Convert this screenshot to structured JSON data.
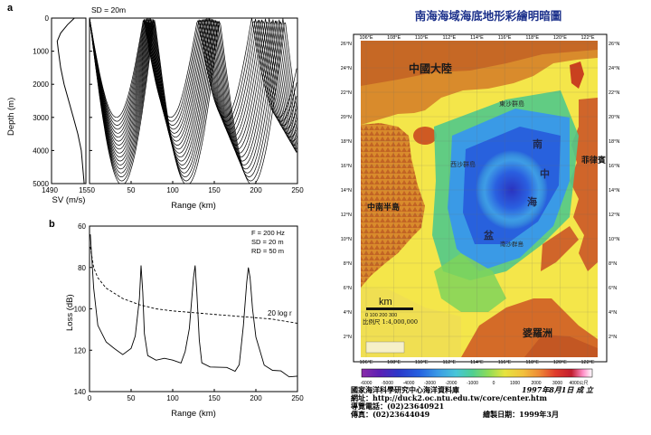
{
  "panel_a": {
    "label": "a",
    "sd_note": "SD = 20m",
    "sv_xlabel": "SV (m/s)",
    "range_xlabel": "Range (km)",
    "ylabel": "Depth (m)",
    "y_ticks": [
      "0",
      "1000",
      "2000",
      "3000",
      "4000",
      "5000"
    ],
    "sv_ticks": [
      "1490",
      "1550"
    ],
    "range_ticks": [
      "50",
      "100",
      "150",
      "200",
      "250"
    ]
  },
  "panel_b": {
    "label": "b",
    "params": [
      "F  =  200  Hz",
      "SD  =    20   m",
      "RD  =    50   m"
    ],
    "curve_label": "20 log r",
    "ylabel": "Loss (dB)",
    "xlabel": "Range (km)"
  },
  "chart_data": [
    {
      "type": "line",
      "title": "",
      "xlabel": "SV (m/s)",
      "ylabel": "Depth (m)",
      "xlim": [
        1490,
        1550
      ],
      "ylim": [
        5000,
        0
      ],
      "series": [
        {
          "x": [
            1530,
            1518,
            1506,
            1500,
            1502,
            1506,
            1512,
            1520,
            1528,
            1536,
            1542,
            1547
          ],
          "y": [
            0,
            200,
            450,
            700,
            1000,
            1500,
            2000,
            2500,
            3000,
            3500,
            4000,
            5000
          ]
        }
      ]
    },
    {
      "type": "line",
      "title": "",
      "xlabel": "Range (km)",
      "ylabel": "Depth (m)",
      "xlim": [
        0,
        250
      ],
      "ylim": [
        5000,
        0
      ],
      "x_ticks": [
        0,
        50,
        100,
        150,
        200,
        250
      ],
      "y_ticks": [
        0,
        1000,
        2000,
        3000,
        4000,
        5000
      ],
      "convergence_zones_km": [
        62,
        128,
        193
      ]
    },
    {
      "type": "line",
      "title": "",
      "xlabel": "Range (km)",
      "ylabel": "Loss (dB)",
      "xlim": [
        0,
        250
      ],
      "ylim": [
        140,
        60
      ],
      "x_ticks": [
        0,
        50,
        100,
        150,
        200,
        250
      ],
      "y_ticks": [
        60,
        80,
        100,
        120,
        140
      ],
      "series": [
        {
          "x": [
            1,
            5,
            10,
            20,
            30,
            40,
            50,
            55,
            60,
            62,
            64,
            66,
            70,
            80,
            90,
            100,
            110,
            115,
            120,
            125,
            127,
            129,
            132,
            135,
            145,
            155,
            165,
            175,
            180,
            185,
            189,
            191,
            193,
            196,
            200,
            210,
            220,
            230,
            240,
            250
          ],
          "y": [
            64,
            90,
            108,
            116,
            120,
            121,
            119,
            114,
            95,
            79,
            92,
            112,
            122,
            124,
            125,
            125,
            125,
            120,
            110,
            85,
            79,
            92,
            115,
            126,
            127,
            129,
            129,
            129,
            126,
            108,
            87,
            80,
            85,
            100,
            114,
            126,
            130,
            131,
            132,
            132
          ]
        },
        {
          "name": "20 log r",
          "x": [
            1,
            5,
            10,
            20,
            40,
            60,
            80,
            100,
            130,
            160,
            190,
            220,
            250
          ],
          "y": [
            70,
            80,
            85,
            90,
            95,
            98,
            100,
            101,
            102,
            103,
            104,
            105,
            107
          ]
        }
      ]
    },
    {
      "type": "heatmap",
      "title": "南海海域海底地形彩繪明暗圖",
      "xlabel": "",
      "ylabel": "",
      "lon_ticks": [
        "106°E",
        "108°E",
        "110°E",
        "112°E",
        "114°E",
        "116°E",
        "118°E",
        "120°E",
        "122°E"
      ],
      "lat_ticks": [
        "26°N",
        "24°N",
        "22°N",
        "20°N",
        "18°N",
        "16°N",
        "14°N",
        "12°N",
        "10°N",
        "8°N",
        "6°N",
        "4°N",
        "2°N"
      ],
      "colorbar_ticks": [
        "-6000",
        "-5000",
        "-4000",
        "-3000",
        "-2000",
        "-1000",
        "0",
        "1000",
        "2000",
        "3000",
        "4000公尺"
      ],
      "colorbar_colors": [
        "#8a2ba8",
        "#5a1fb5",
        "#2b38c9",
        "#2561e0",
        "#3a9ae6",
        "#47c6d8",
        "#4fcf92",
        "#8fdc57",
        "#e6e43f",
        "#f2c13c",
        "#ee8a36",
        "#e03c2c",
        "#c21d2e",
        "#ff8fc8",
        "#ffffff"
      ]
    }
  ],
  "map": {
    "title": "南海海域海底地形彩繪明暗圖",
    "labels": {
      "china": "中國大陸",
      "dongsha": "東沙群島",
      "xisha": "西沙群島",
      "south": "南",
      "zhong": "中",
      "hai": "海",
      "basin": "盆",
      "indochina": "中南半島",
      "philippines": "菲律賓",
      "nansha": "南沙群島",
      "borneo": "婆羅洲"
    },
    "scale_unit": "km",
    "scale_ticks": "0  100 200 300",
    "scale_ratio": "比例尺 1:4,000,000",
    "footer": {
      "line1": "國家海洋科學研究中心海洋資料庫",
      "line1_right": "1997年8月1日 成 立",
      "line2": "網址：http://duck2.oc.ntu.edu.tw/core/center.htm",
      "line3": "導覽電話：(02)23640921",
      "line4": "傳真：(02)23644049",
      "line4_right": "繪製日期：1999年3月"
    }
  }
}
